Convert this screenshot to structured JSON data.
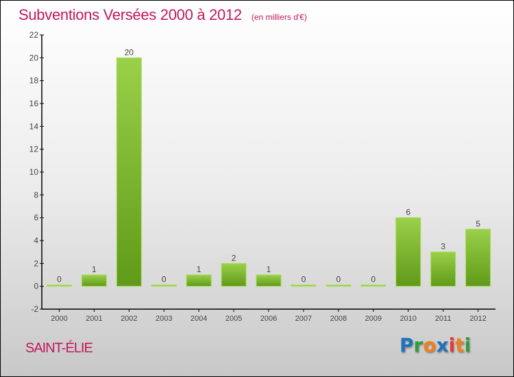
{
  "title": "Subventions Versées 2000 à 2012",
  "unit": "(en milliers d'€)",
  "commune": "SAINT-ÉLIE",
  "logo": {
    "text": "Proxiti",
    "letters": [
      "P",
      "r",
      "o",
      "x",
      "i",
      "t",
      "i"
    ],
    "colors": [
      "#1e73be",
      "#2e9e3a",
      "#f07f1e",
      "#1e73be",
      "#e53935",
      "#f07f1e",
      "#2e9e3a"
    ]
  },
  "chart_data": {
    "type": "bar",
    "title": "Subventions Versées 2000 à 2012",
    "categories": [
      "2000",
      "2001",
      "2002",
      "2003",
      "2004",
      "2005",
      "2006",
      "2007",
      "2008",
      "2009",
      "2010",
      "2011",
      "2012"
    ],
    "values": [
      0,
      1,
      20,
      0,
      1,
      2,
      1,
      0,
      0,
      0,
      6,
      3,
      5
    ],
    "ylim": [
      -2,
      22
    ],
    "yticks": [
      -2,
      0,
      2,
      4,
      6,
      8,
      10,
      12,
      14,
      16,
      18,
      20,
      22
    ],
    "xlabel": "",
    "ylabel": "",
    "bar_color": "#7cb82f"
  }
}
